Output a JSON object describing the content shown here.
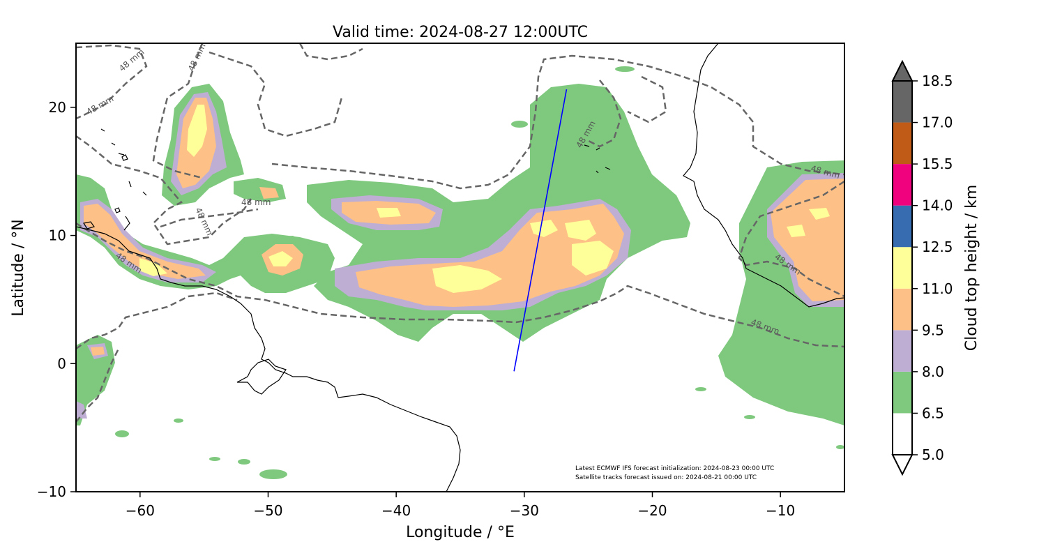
{
  "title": "Valid time: 2024-08-27 12:00UTC",
  "map": {
    "xlabel": "Longitude / °E",
    "ylabel": "Latitude / °N",
    "xlim": [
      -65,
      -5
    ],
    "ylim": [
      -10,
      25
    ],
    "xticks": [
      -60,
      -50,
      -40,
      -30,
      -20,
      -10
    ],
    "xtick_labels": [
      "−60",
      "−50",
      "−40",
      "−30",
      "−20",
      "−10"
    ],
    "yticks": [
      -10,
      0,
      10,
      20
    ],
    "ytick_labels": [
      "−10",
      "0",
      "10",
      "20"
    ],
    "grid": false
  },
  "colorbar": {
    "label": "Cloud top height / km",
    "levels": [
      5.0,
      6.5,
      8.0,
      9.5,
      11.0,
      12.5,
      14.0,
      15.5,
      17.0,
      18.5
    ],
    "level_labels": [
      "5.0",
      "6.5",
      "8.0",
      "9.5",
      "11.0",
      "12.5",
      "14.0",
      "15.5",
      "17.0",
      "18.5"
    ],
    "colors": [
      "#ffffff",
      "#7fc97f",
      "#beaed4",
      "#fdc086",
      "#ffff99",
      "#386cb0",
      "#f0027f",
      "#bf5b17",
      "#666666"
    ],
    "extend": "both"
  },
  "contour": {
    "value_label": "48 mm",
    "style": "dashed",
    "color": "#666666"
  },
  "satellite_track": {
    "color": "#0000ff",
    "start": {
      "lon": -30.8,
      "lat": -0.6
    },
    "end": {
      "lon": -26.7,
      "lat": 21.4
    }
  },
  "annotations": {
    "line1": "Latest ECMWF IFS forecast initialization: 2024-08-23 00:00 UTC",
    "line2": "Satellite tracks forecast issued on: 2024-08-21 00:00 UTC"
  }
}
